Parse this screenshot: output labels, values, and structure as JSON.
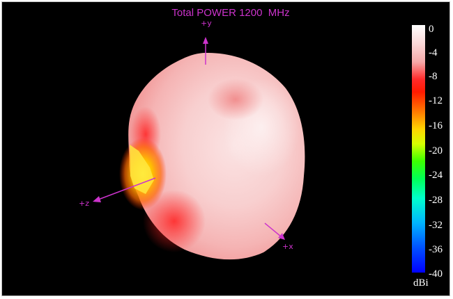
{
  "plot": {
    "title": "Total POWER 1200  MHz"
  },
  "axes": {
    "y_label": "+y",
    "z_label": "+z",
    "x_label": "+x"
  },
  "colorbar": {
    "ticks": [
      "0",
      "-4",
      "-8",
      "-12",
      "-16",
      "-20",
      "-24",
      "-28",
      "-32",
      "-36",
      "-40"
    ],
    "unit": "dBi",
    "max": 0,
    "min": -40
  },
  "colors": {
    "background": "#000000",
    "axis": "#cc33cc",
    "text": "#ffffff"
  }
}
